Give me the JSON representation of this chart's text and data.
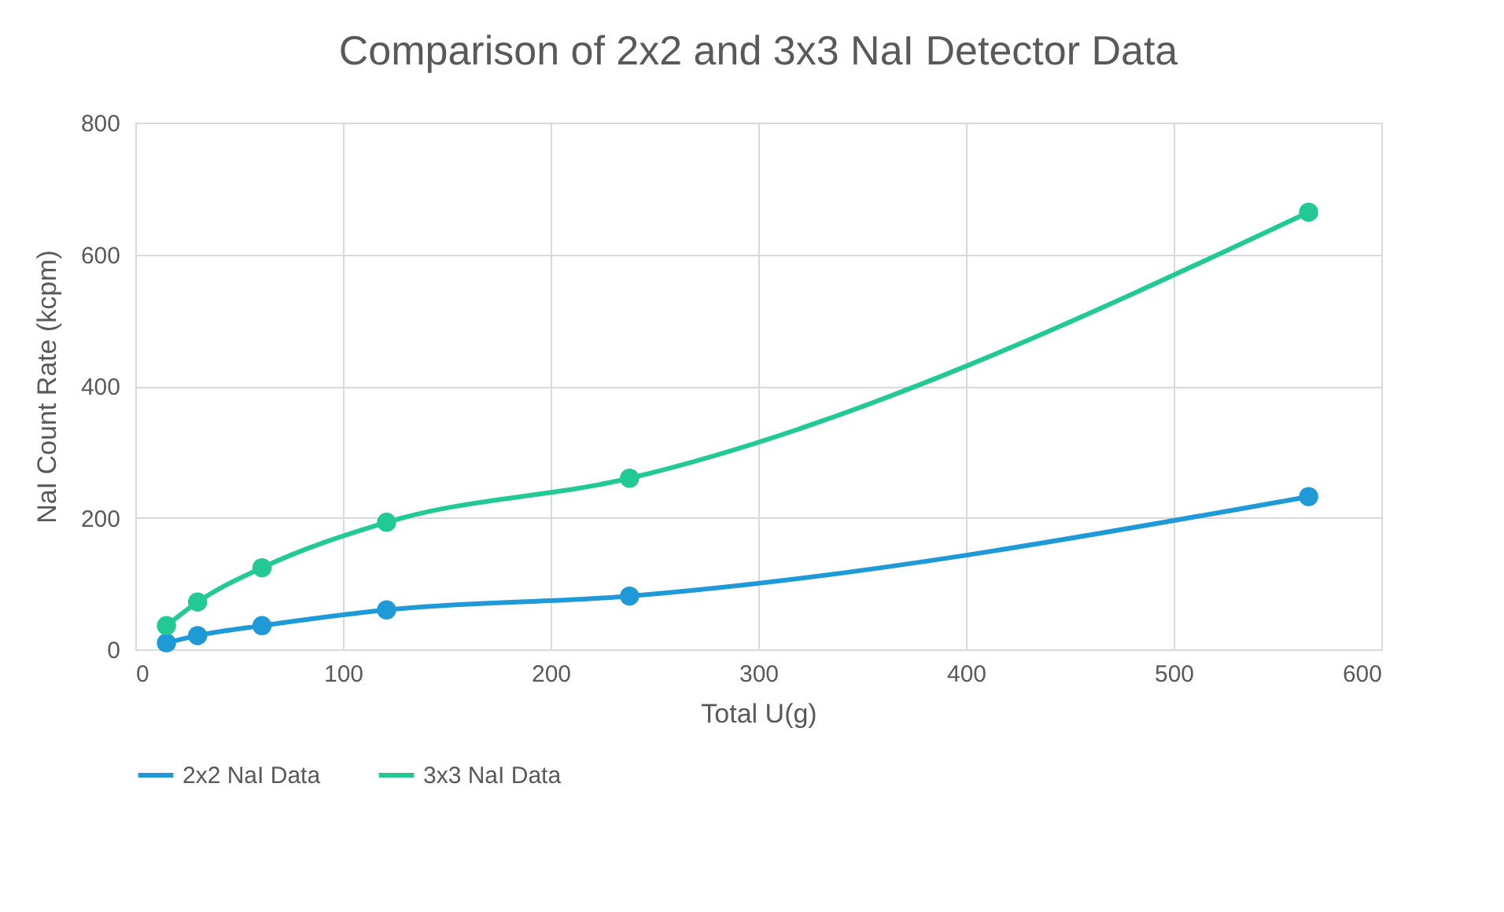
{
  "chart_data": {
    "type": "line",
    "title": "Comparison of 2x2 and 3x3 NaI Detector Data",
    "xlabel": "Total U(g)",
    "ylabel": "NaI Count Rate (kcpm)",
    "x": [
      15,
      30,
      61,
      121,
      238,
      565
    ],
    "series": [
      {
        "name": "2x2 NaI Data",
        "color": "#1f9ad6",
        "values": [
          10,
          21,
          36,
          60,
          81,
          232
        ]
      },
      {
        "name": "3x3 NaI Data",
        "color": "#22c994",
        "values": [
          36,
          72,
          124,
          193,
          260,
          664
        ]
      }
    ],
    "xlim": [
      0,
      600
    ],
    "xticks": [
      0,
      100,
      200,
      300,
      400,
      500,
      600
    ],
    "ylim": [
      0,
      800
    ],
    "yticks": [
      0,
      200,
      400,
      600,
      800
    ],
    "grid": true,
    "legend": "bottom",
    "marker": "circle",
    "line_style": "solid"
  }
}
